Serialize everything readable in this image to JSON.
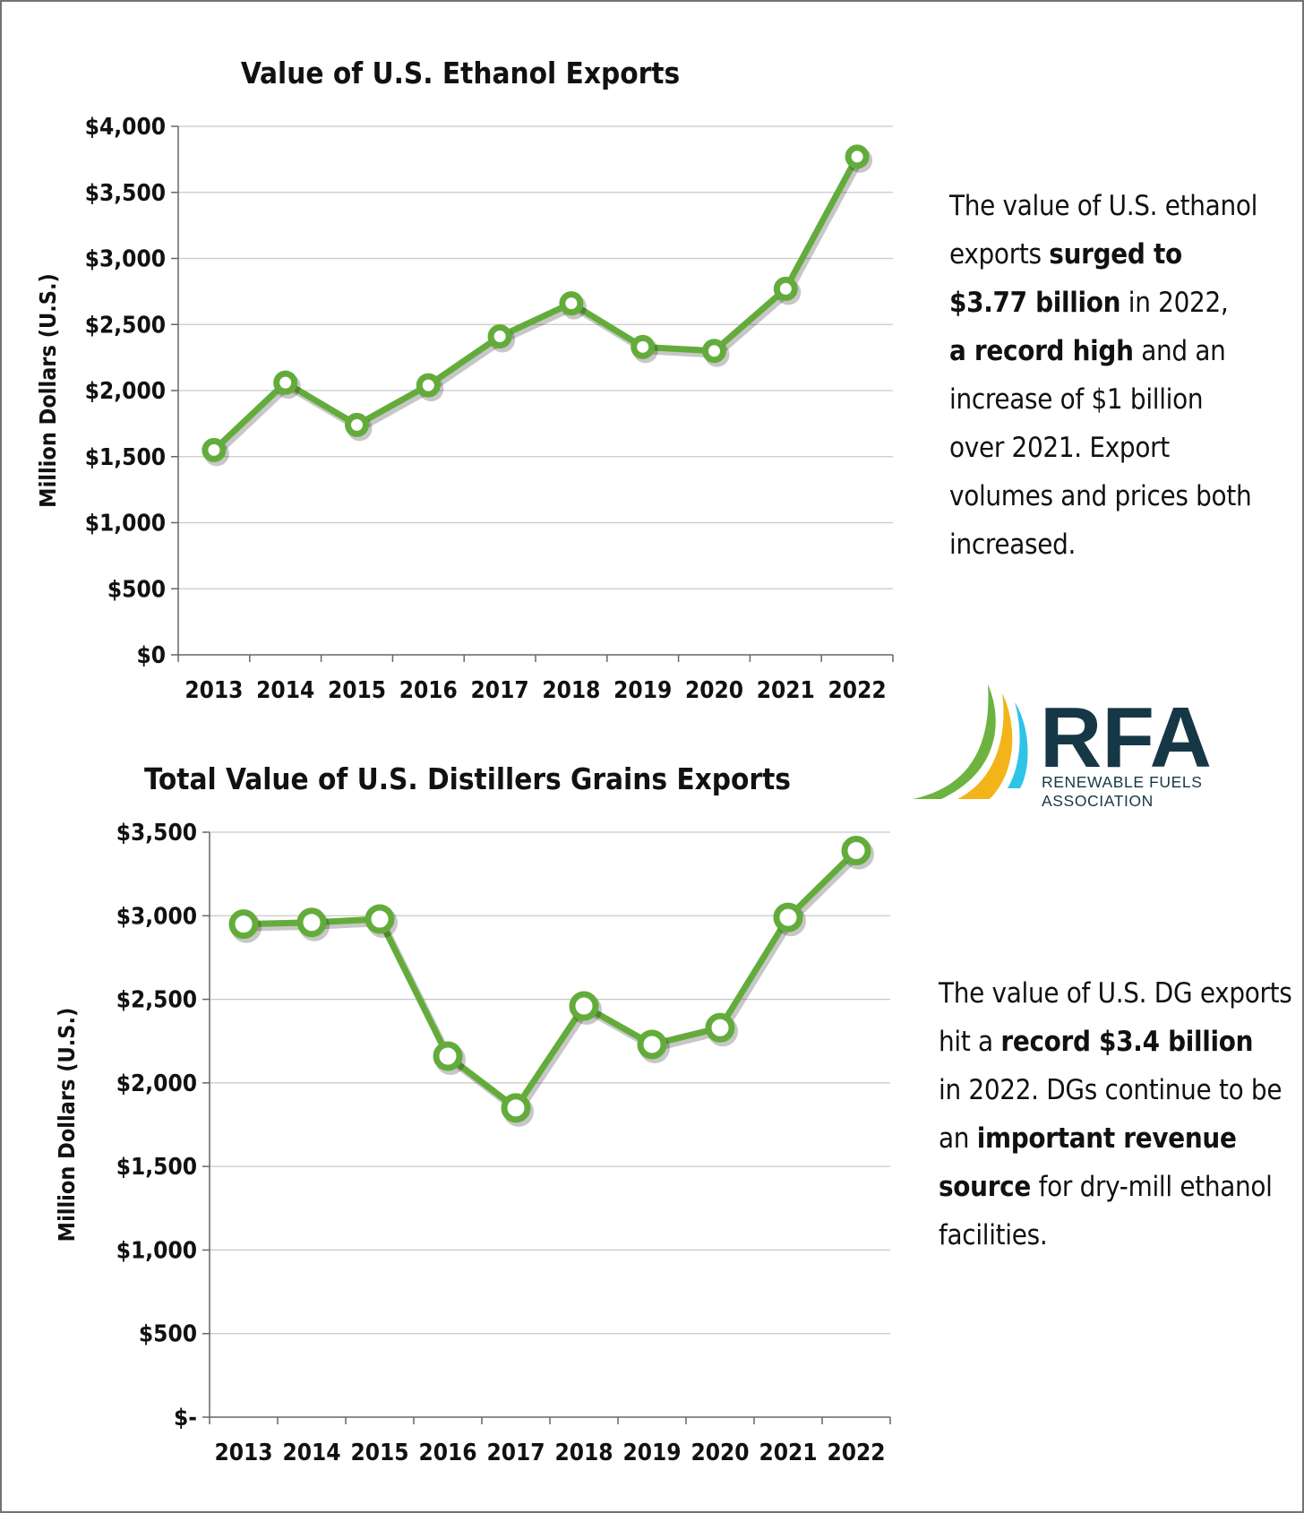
{
  "chart_data": [
    {
      "type": "line",
      "title": "Value of U.S. Ethanol Exports",
      "xlabel": "",
      "ylabel": "Million Dollars (U.S.)",
      "categories": [
        "2013",
        "2014",
        "2015",
        "2016",
        "2017",
        "2018",
        "2019",
        "2020",
        "2021",
        "2022"
      ],
      "values": [
        1550,
        2060,
        1740,
        2040,
        2410,
        2660,
        2330,
        2300,
        2770,
        3770
      ],
      "ylim": [
        0,
        4000
      ],
      "yticks": [
        0,
        500,
        1000,
        1500,
        2000,
        2500,
        3000,
        3500,
        4000
      ],
      "ytick_labels": [
        "$0",
        "$500",
        "$1,000",
        "$1,500",
        "$2,000",
        "$2,500",
        "$3,000",
        "$3,500",
        "$4,000"
      ],
      "grid": true,
      "legend": "none",
      "color": "#63ac3c"
    },
    {
      "type": "line",
      "title": "Total Value of U.S. Distillers Grains Exports",
      "xlabel": "",
      "ylabel": "Million Dollars (U.S.)",
      "categories": [
        "2013",
        "2014",
        "2015",
        "2016",
        "2017",
        "2018",
        "2019",
        "2020",
        "2021",
        "2022"
      ],
      "values": [
        2950,
        2960,
        2980,
        2160,
        1850,
        2460,
        2230,
        2330,
        2990,
        3390
      ],
      "ylim": [
        0,
        3500
      ],
      "yticks": [
        0,
        500,
        1000,
        1500,
        2000,
        2500,
        3000,
        3500
      ],
      "ytick_labels": [
        "$-",
        "$500",
        "$1,000",
        "$1,500",
        "$2,000",
        "$2,500",
        "$3,000",
        "$3,500"
      ],
      "grid": true,
      "legend": "none",
      "color": "#63ac3c"
    }
  ],
  "notes": {
    "ethanol": {
      "l1": "The value of U.S. ethanol",
      "l2a": "exports ",
      "l2b": "surged to",
      "l3a": "$3.77 billion",
      "l3b": " in 2022,",
      "l4a": "a record high",
      "l4b": " and an",
      "l5": "increase of $1 billion",
      "l6": "over 2021. Export",
      "l7": "volumes and prices both",
      "l8": "increased."
    },
    "dg": {
      "l1": "The value of U.S. DG exports",
      "l2a": "hit a ",
      "l2b": "record $3.4 billion",
      "l3": "in 2022. DGs continue to be",
      "l4a": "an ",
      "l4b": "important revenue",
      "l5a": "source",
      "l5b": " for dry-mill ethanol",
      "l6": "facilities."
    }
  },
  "logo": {
    "acronym": "RFA",
    "line1": "RENEWABLE FUELS",
    "line2": "ASSOCIATION",
    "colors": {
      "green": "#6cb33f",
      "yellow": "#f2b418",
      "cyan": "#2ec4e8",
      "navy": "#163846"
    }
  }
}
